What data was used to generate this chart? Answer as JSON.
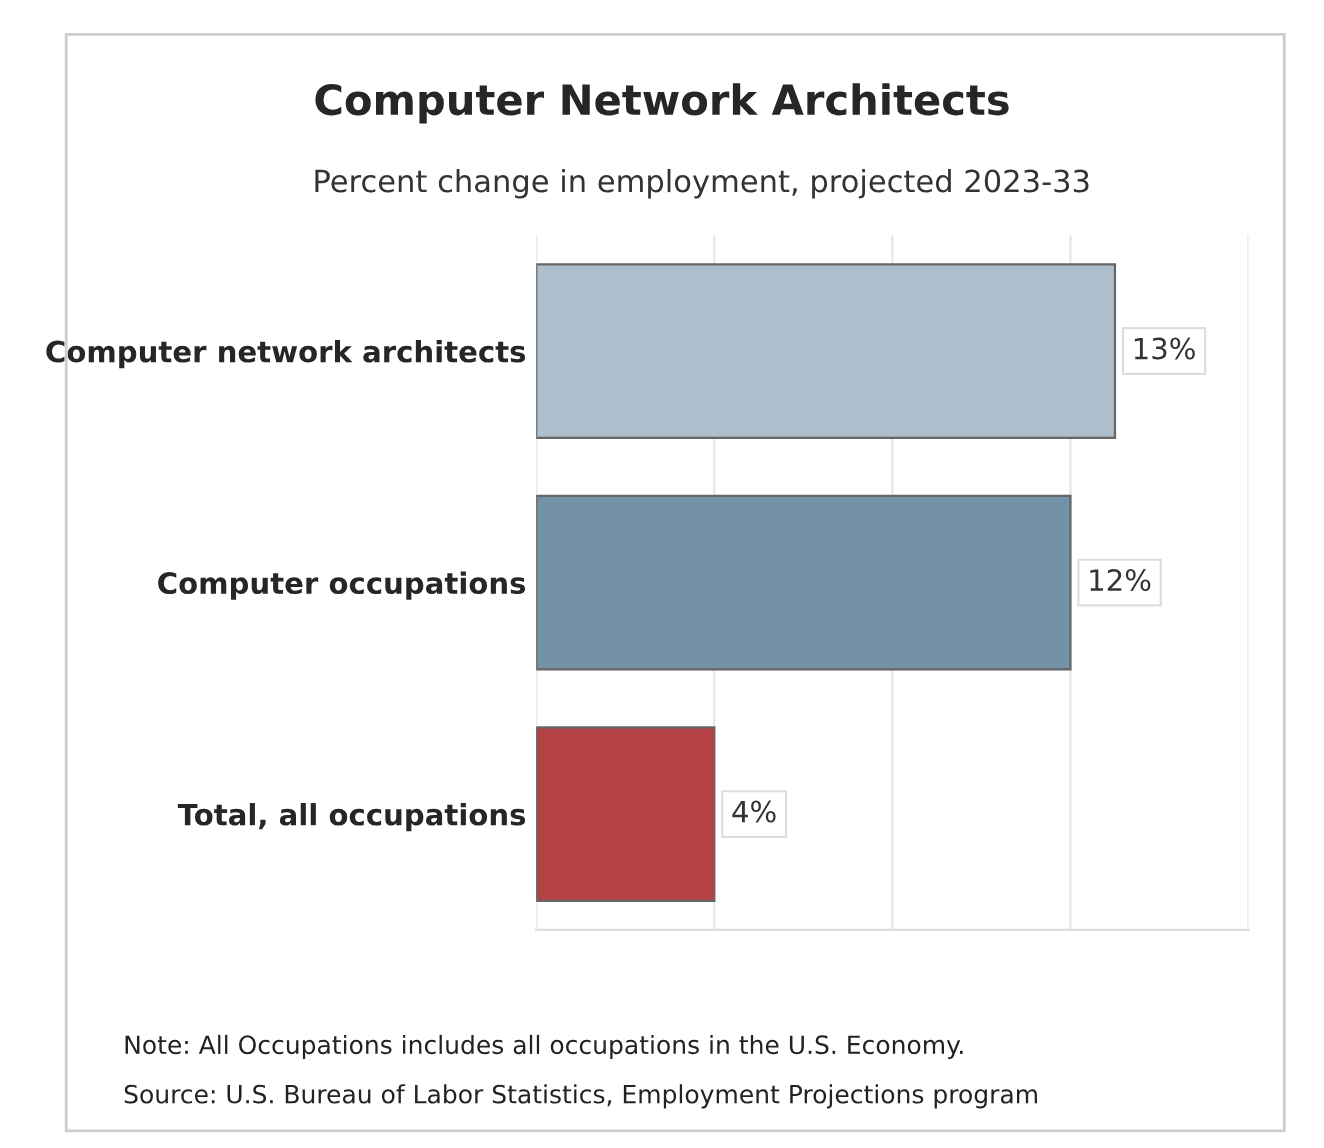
{
  "chart_data": {
    "type": "bar",
    "orientation": "horizontal",
    "title": "Computer Network Architects",
    "subtitle": "Percent change in employment, projected 2023-33",
    "categories": [
      "Computer network architects",
      "Computer occupations",
      "Total, all occupations"
    ],
    "values": [
      13,
      12,
      4
    ],
    "colors": [
      "#adbfcc",
      "#7391a7",
      "#b44244"
    ],
    "value_labels": [
      "13%",
      "12%",
      "4%"
    ],
    "xlim": [
      0,
      16
    ],
    "xticks": [
      {
        "value": 0,
        "label": null
      },
      {
        "value": 4,
        "label": null
      },
      {
        "value": 8,
        "label": null
      },
      {
        "value": 12,
        "label": null
      },
      {
        "value": 16,
        "label": null
      }
    ],
    "tick_labels": "y",
    "grid": "x",
    "annotations": [
      "Note: All Occupations includes all occupations in the U.S. Economy.",
      "Source: U.S. Bureau of Labor Statistics, Employment Projections program"
    ]
  }
}
